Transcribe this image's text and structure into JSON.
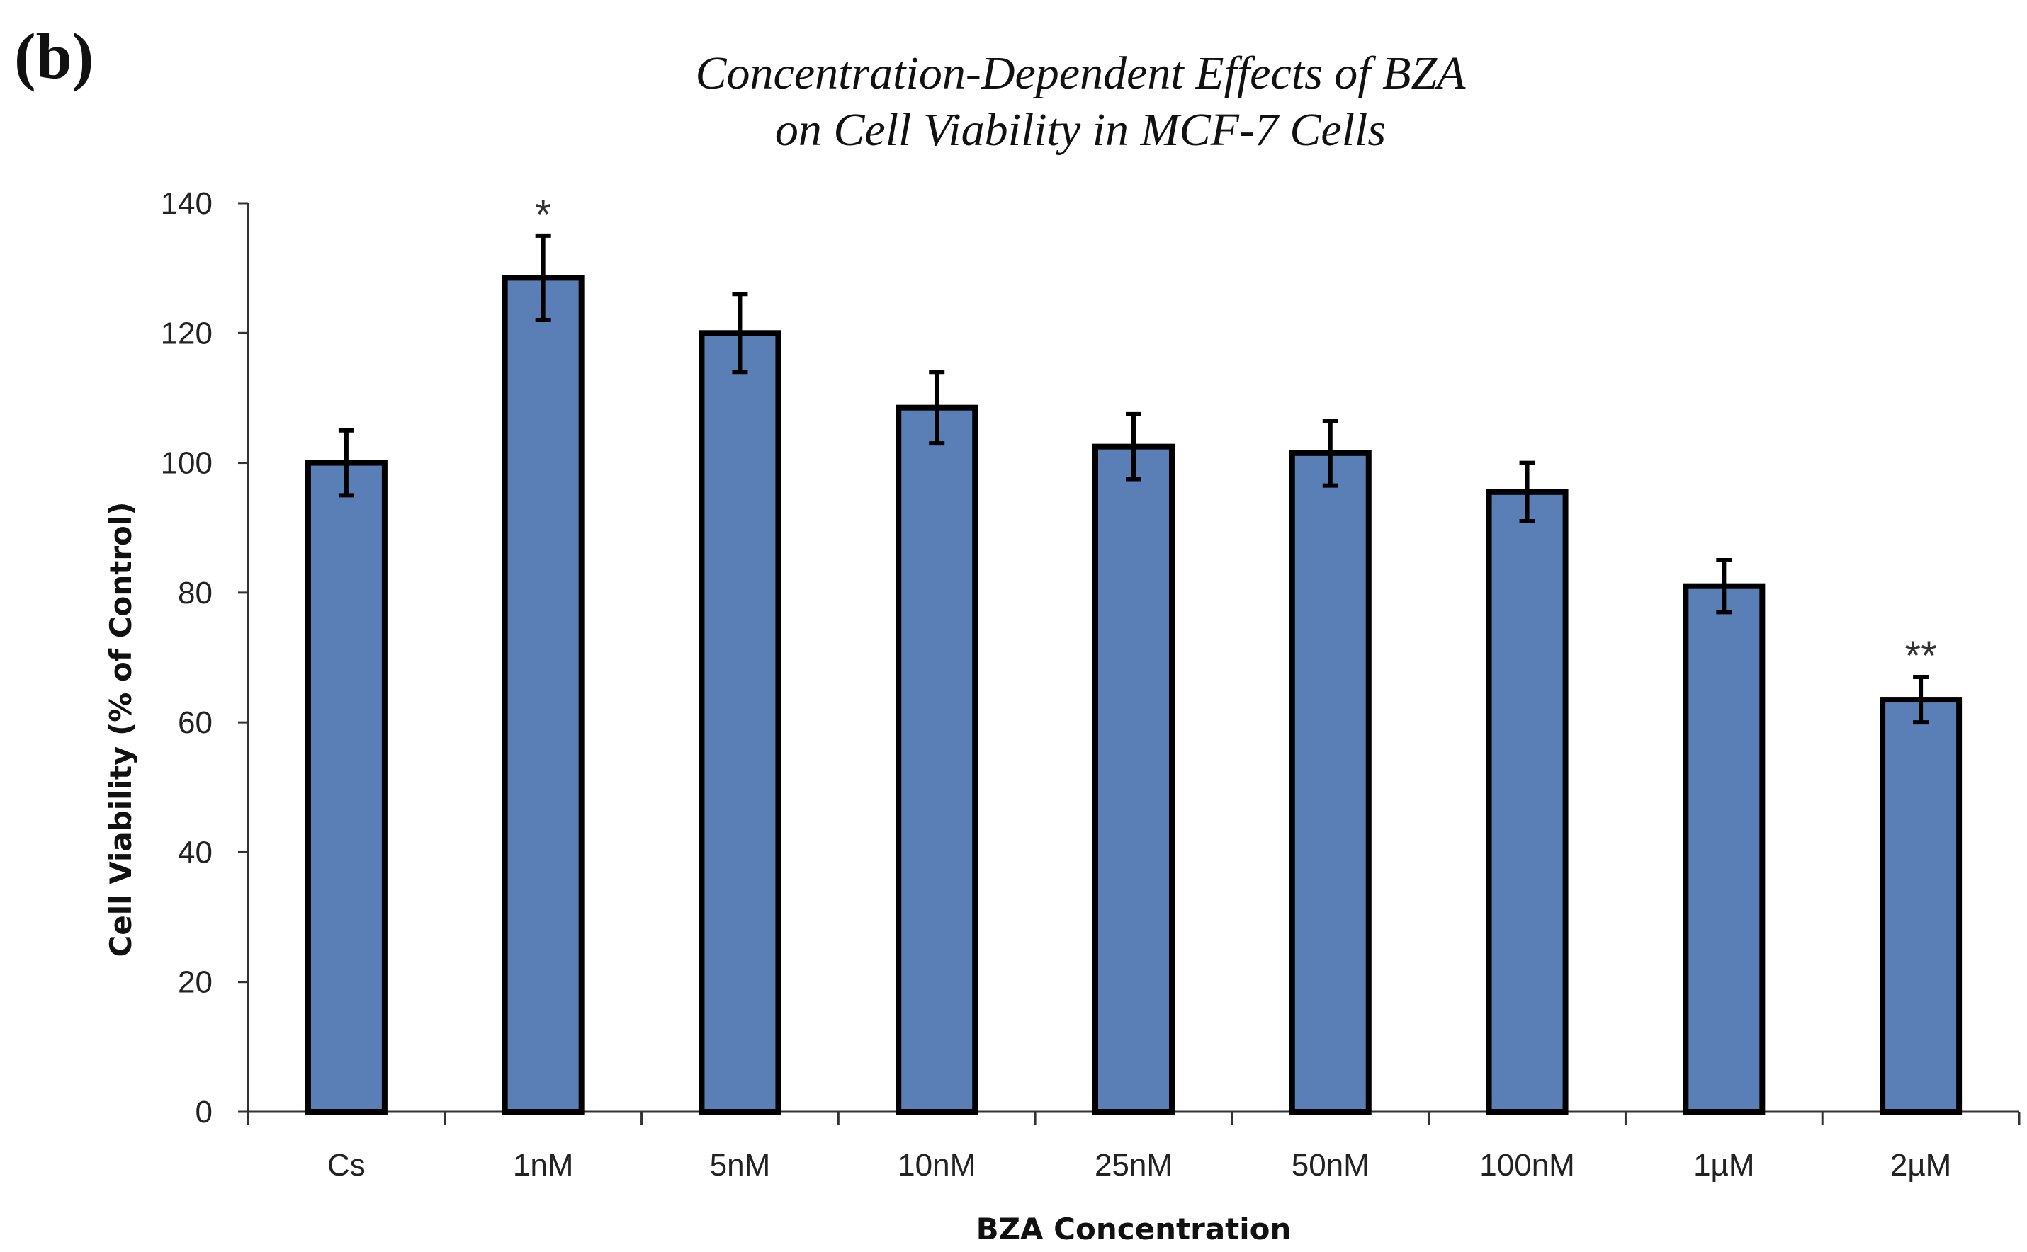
{
  "panel_label": "(b)",
  "colors": {
    "bar_fill": "#5a7fb6",
    "bar_stroke": "#000000",
    "axis": "#333333"
  },
  "chart_data": {
    "type": "bar",
    "title_lines": [
      "Concentration-Dependent Effects of BZA",
      "on Cell Viability in MCF-7 Cells"
    ],
    "xlabel": "BZA Concentration",
    "ylabel": "Cell Viability (% of Control)",
    "ylim": [
      0,
      140
    ],
    "yticks": [
      "0",
      "20",
      "40",
      "60",
      "80",
      "100",
      "120",
      "140"
    ],
    "categories": [
      "Cs",
      "1nM",
      "5nM",
      "10nM",
      "25nM",
      "50nM",
      "100nM",
      "1µM",
      "2µM"
    ],
    "values": [
      100,
      128.5,
      120,
      108.5,
      102.5,
      101.5,
      95.5,
      81,
      63.5
    ],
    "errors": [
      5,
      6.5,
      6,
      5.5,
      5,
      5,
      4.5,
      4,
      3.5
    ],
    "significance": [
      "",
      "*",
      "",
      "",
      "",
      "",
      "",
      "",
      "**"
    ]
  }
}
